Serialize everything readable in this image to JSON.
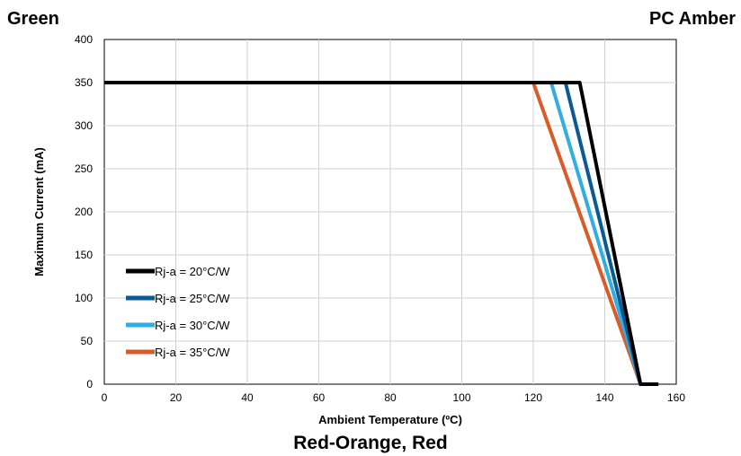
{
  "titles": {
    "top_left": "Green",
    "top_right": "PC Amber",
    "bottom": "Red-Orange, Red"
  },
  "chart_data": {
    "type": "line",
    "xlabel": "Ambient Temperature (ºC)",
    "ylabel": "Maximum Current (mA)",
    "xlim": [
      0,
      160
    ],
    "ylim": [
      0,
      400
    ],
    "xticks": [
      0,
      20,
      40,
      60,
      80,
      100,
      120,
      140,
      160
    ],
    "yticks": [
      0,
      50,
      100,
      150,
      200,
      250,
      300,
      350,
      400
    ],
    "grid": true,
    "legend_position": "bottom-left",
    "series": [
      {
        "name": "Rj-a = 20°C/W",
        "color": "#000000",
        "x": [
          0,
          133,
          150,
          155
        ],
        "y": [
          350,
          350,
          0,
          0
        ]
      },
      {
        "name": "Rj-a = 25°C/W",
        "color": "#0b5a94",
        "x": [
          0,
          129,
          150,
          155
        ],
        "y": [
          350,
          350,
          0,
          0
        ]
      },
      {
        "name": "Rj-a = 30°C/W",
        "color": "#31ade2",
        "x": [
          0,
          125,
          150,
          155
        ],
        "y": [
          350,
          350,
          0,
          0
        ]
      },
      {
        "name": "Rj-a = 35°C/W",
        "color": "#d95b27",
        "x": [
          0,
          120,
          150,
          155
        ],
        "y": [
          350,
          350,
          0,
          0
        ]
      }
    ]
  }
}
